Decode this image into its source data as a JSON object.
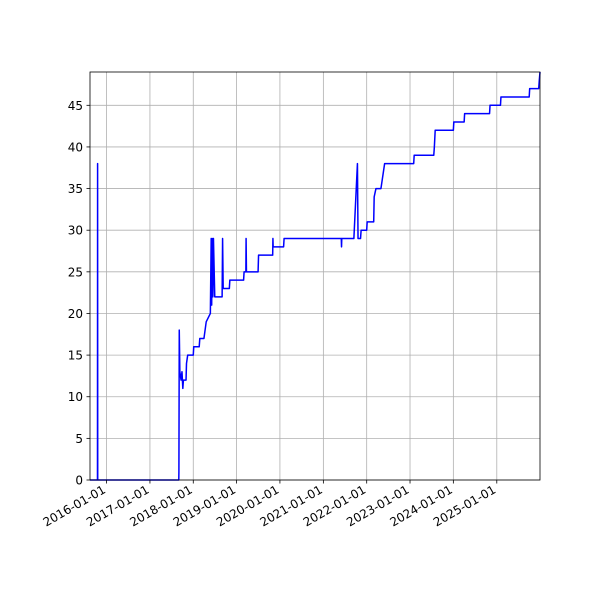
{
  "chart_data": {
    "type": "line",
    "title": "",
    "xlabel": "",
    "ylabel": "",
    "x_type": "date",
    "xlim": [
      "2015-08-15",
      "2025-12-31"
    ],
    "ylim": [
      0,
      49
    ],
    "grid": true,
    "x_tick_labels": [
      "2016-01-01",
      "2017-01-01",
      "2018-01-01",
      "2019-01-01",
      "2020-01-01",
      "2021-01-01",
      "2022-01-01",
      "2023-01-01",
      "2024-01-01",
      "2025-01-01"
    ],
    "y_ticks": [
      0,
      5,
      10,
      15,
      20,
      25,
      30,
      35,
      40,
      45
    ],
    "series": [
      {
        "color": "#0000ff",
        "points": [
          [
            "2015-08-15",
            0
          ],
          [
            "2015-10-17",
            0
          ],
          [
            "2015-10-18",
            38
          ],
          [
            "2015-10-19",
            0
          ],
          [
            "2017-09-01",
            0
          ],
          [
            "2017-09-02",
            1
          ],
          [
            "2017-09-05",
            18
          ],
          [
            "2017-09-10",
            13
          ],
          [
            "2017-09-20",
            12
          ],
          [
            "2017-09-28",
            13
          ],
          [
            "2017-10-05",
            11
          ],
          [
            "2017-10-10",
            12
          ],
          [
            "2017-11-01",
            12
          ],
          [
            "2017-11-05",
            14
          ],
          [
            "2017-11-15",
            15
          ],
          [
            "2018-01-01",
            15
          ],
          [
            "2018-01-05",
            16
          ],
          [
            "2018-02-20",
            16
          ],
          [
            "2018-02-25",
            17
          ],
          [
            "2018-04-01",
            17
          ],
          [
            "2018-04-20",
            19
          ],
          [
            "2018-05-25",
            20
          ],
          [
            "2018-06-01",
            29
          ],
          [
            "2018-06-05",
            21
          ],
          [
            "2018-06-10",
            29
          ],
          [
            "2018-06-15",
            22
          ],
          [
            "2018-06-20",
            29
          ],
          [
            "2018-07-01",
            22
          ],
          [
            "2018-09-01",
            22
          ],
          [
            "2018-09-05",
            29
          ],
          [
            "2018-09-10",
            23
          ],
          [
            "2018-11-01",
            23
          ],
          [
            "2018-11-05",
            24
          ],
          [
            "2019-03-01",
            24
          ],
          [
            "2019-03-05",
            25
          ],
          [
            "2019-03-20",
            25
          ],
          [
            "2019-03-22",
            29
          ],
          [
            "2019-03-25",
            25
          ],
          [
            "2019-07-01",
            25
          ],
          [
            "2019-07-05",
            27
          ],
          [
            "2019-11-01",
            27
          ],
          [
            "2019-11-03",
            29
          ],
          [
            "2019-11-05",
            28
          ],
          [
            "2020-02-01",
            28
          ],
          [
            "2020-02-05",
            29
          ],
          [
            "2021-06-01",
            29
          ],
          [
            "2021-06-03",
            28
          ],
          [
            "2021-06-05",
            29
          ],
          [
            "2021-09-01",
            29
          ],
          [
            "2021-09-15",
            29
          ],
          [
            "2021-10-15",
            38
          ],
          [
            "2021-10-20",
            29
          ],
          [
            "2021-11-10",
            29
          ],
          [
            "2021-11-15",
            30
          ],
          [
            "2022-01-01",
            30
          ],
          [
            "2022-01-05",
            31
          ],
          [
            "2022-03-01",
            31
          ],
          [
            "2022-03-05",
            34
          ],
          [
            "2022-03-20",
            35
          ],
          [
            "2022-05-01",
            35
          ],
          [
            "2022-06-01",
            38
          ],
          [
            "2023-02-01",
            38
          ],
          [
            "2023-02-05",
            39
          ],
          [
            "2023-07-20",
            39
          ],
          [
            "2023-07-25",
            40
          ],
          [
            "2023-08-01",
            42
          ],
          [
            "2024-01-01",
            42
          ],
          [
            "2024-01-05",
            43
          ],
          [
            "2024-04-01",
            43
          ],
          [
            "2024-04-05",
            44
          ],
          [
            "2024-11-01",
            44
          ],
          [
            "2024-11-05",
            45
          ],
          [
            "2025-02-01",
            45
          ],
          [
            "2025-02-05",
            46
          ],
          [
            "2025-10-01",
            46
          ],
          [
            "2025-10-05",
            47
          ],
          [
            "2025-12-20",
            47
          ],
          [
            "2025-12-25",
            48
          ],
          [
            "2025-12-31",
            49
          ]
        ]
      }
    ]
  }
}
